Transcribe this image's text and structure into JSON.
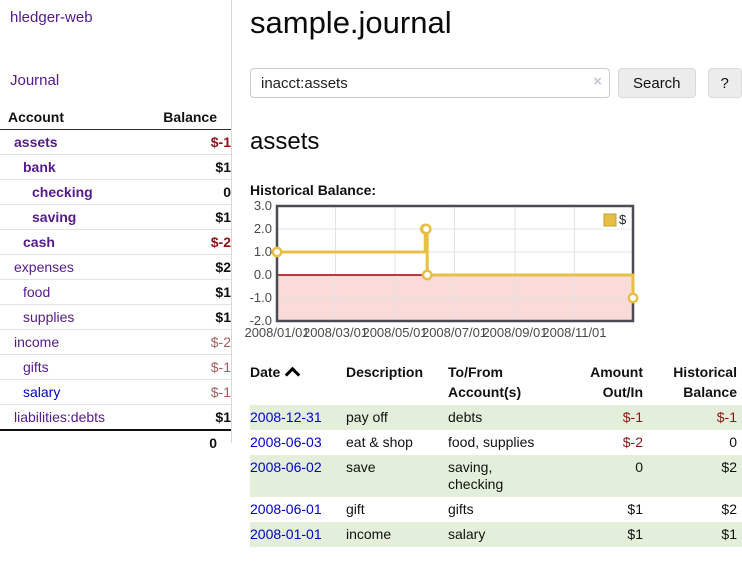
{
  "app": {
    "brand": "hledger-web",
    "nav_journal": "Journal"
  },
  "colors": {
    "link_visited_purple": "#551a8b",
    "link_blue": "#0000cc",
    "negative_strong": "#8b1414",
    "negative_soft": "#a85c5c",
    "row_stripe_green": "#e3efda",
    "chart_line_gold": "#e7bf44",
    "chart_negative_fill": "#fbdada",
    "chart_zero_line": "#a40000",
    "chart_border": "#4a4c52"
  },
  "sidebar": {
    "header": {
      "account": "Account",
      "balance": "Balance"
    },
    "accounts": [
      {
        "name": "assets",
        "depth": 0,
        "bold": true,
        "balance": "$-1",
        "amount_class": "neg"
      },
      {
        "name": "bank",
        "depth": 1,
        "bold": true,
        "balance": "$1",
        "amount_class": "pos"
      },
      {
        "name": "checking",
        "depth": 2,
        "bold": true,
        "balance": "0",
        "amount_class": "pos"
      },
      {
        "name": "saving",
        "depth": 2,
        "bold": true,
        "balance": "$1",
        "amount_class": "pos"
      },
      {
        "name": "cash",
        "depth": 1,
        "bold": true,
        "balance": "$-2",
        "amount_class": "neg"
      },
      {
        "name": "expenses",
        "depth": 0,
        "bold": false,
        "balance": "$2",
        "amount_class": "pos"
      },
      {
        "name": "food",
        "depth": 1,
        "bold": false,
        "balance": "$1",
        "amount_class": "pos"
      },
      {
        "name": "supplies",
        "depth": 1,
        "bold": false,
        "balance": "$1",
        "amount_class": "pos"
      },
      {
        "name": "income",
        "depth": 0,
        "bold": false,
        "balance": "$-2",
        "amount_class": "neg-soft"
      },
      {
        "name": "gifts",
        "depth": 1,
        "bold": false,
        "balance": "$-1",
        "amount_class": "neg-soft"
      },
      {
        "name": "salary",
        "depth": 1,
        "bold": false,
        "balance": "$-1",
        "amount_class": "neg-soft",
        "link_color": "blue"
      },
      {
        "name": "liabilities:debts",
        "depth": 0,
        "bold": false,
        "balance": "$1",
        "amount_class": "pos"
      }
    ],
    "total": "0"
  },
  "main": {
    "title": "sample.journal",
    "search": {
      "value": "inacct:assets",
      "clear_icon": "×",
      "button_label": "Search",
      "help_label": "?"
    },
    "account_heading": "assets",
    "chart_label": "Historical Balance:"
  },
  "chart_data": {
    "type": "line",
    "style": "step",
    "x_min": "2008-01-01",
    "x_max": "2008-12-31",
    "ylim": [
      -2,
      3
    ],
    "yticks": [
      3.0,
      2.0,
      1.0,
      0.0,
      -1.0,
      -2.0
    ],
    "xticks": [
      {
        "label": "2008/01/01",
        "date": "2008-01-01"
      },
      {
        "label": "2008/03/01",
        "date": "2008-03-01"
      },
      {
        "label": "2008/05/01",
        "date": "2008-05-01"
      },
      {
        "label": "2008/07/01",
        "date": "2008-07-01"
      },
      {
        "label": "2008/09/01",
        "date": "2008-09-01"
      },
      {
        "label": "2008/11/01",
        "date": "2008-11-01"
      }
    ],
    "grid": true,
    "legend": {
      "position": "top-right",
      "label": "$"
    },
    "series": [
      {
        "name": "$",
        "color": "#e7bf44",
        "points": [
          {
            "date": "2008-01-01",
            "value": 1
          },
          {
            "date": "2008-06-01",
            "value": 2
          },
          {
            "date": "2008-06-02",
            "value": 2
          },
          {
            "date": "2008-06-03",
            "value": 0
          },
          {
            "date": "2008-12-31",
            "value": -1
          }
        ]
      }
    ]
  },
  "register": {
    "headers": [
      {
        "label": "Date",
        "align": "left",
        "sorted": "asc"
      },
      {
        "label": "Description",
        "align": "left"
      },
      {
        "label": "To/From Account(s)",
        "align": "left"
      },
      {
        "label": "Amount Out/In",
        "align": "right"
      },
      {
        "label": "Historical Balance",
        "align": "right"
      }
    ],
    "rows": [
      {
        "date": "2008-12-31",
        "description": "pay off",
        "accounts": "debts",
        "amount": "$-1",
        "balance": "$-1"
      },
      {
        "date": "2008-06-03",
        "description": "eat & shop",
        "accounts": "food, supplies",
        "amount": "$-2",
        "balance": "0"
      },
      {
        "date": "2008-06-02",
        "description": "save",
        "accounts": "saving, checking",
        "amount": "0",
        "balance": "$2"
      },
      {
        "date": "2008-06-01",
        "description": "gift",
        "accounts": "gifts",
        "amount": "$1",
        "balance": "$2"
      },
      {
        "date": "2008-01-01",
        "description": "income",
        "accounts": "salary",
        "amount": "$1",
        "balance": "$1"
      }
    ]
  }
}
